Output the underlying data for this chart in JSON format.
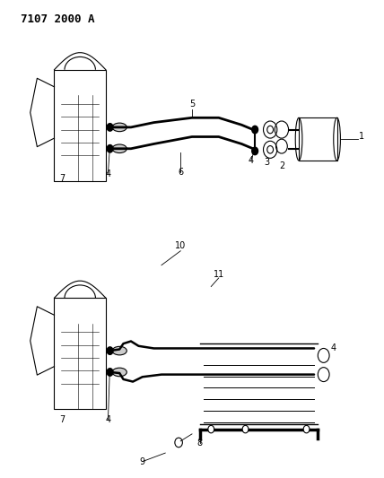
{
  "title": "7107 2000 A",
  "background_color": "#ffffff",
  "line_color": "#000000",
  "text_color": "#000000",
  "fig_width": 4.28,
  "fig_height": 5.33,
  "dpi": 100,
  "title_fontsize": 9,
  "title_fontweight": "bold",
  "label_fontsize": 7
}
